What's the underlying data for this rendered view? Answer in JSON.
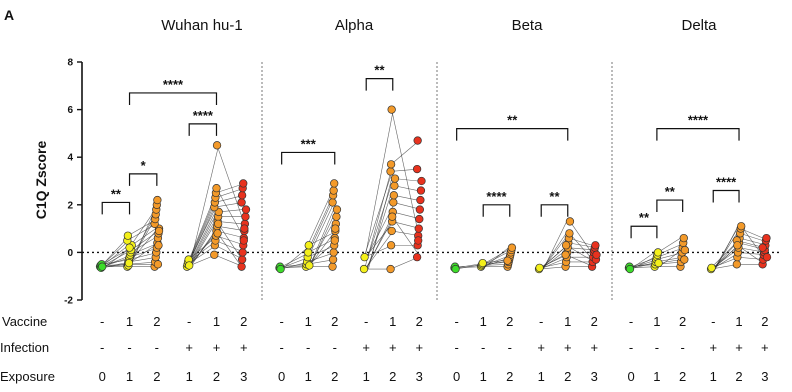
{
  "panel_letter": "A",
  "ylabel": "C1Q Zscore",
  "row_labels": [
    "Vaccine",
    "Infection",
    "Exposure"
  ],
  "rows": {
    "vaccine": [
      "-",
      "1",
      "2",
      "-",
      "1",
      "2"
    ],
    "infection": [
      "-",
      "-",
      "-",
      "+",
      "+",
      "+"
    ],
    "exposure": [
      "0",
      "1",
      "2",
      "1",
      "2",
      "3"
    ]
  },
  "chart_data": {
    "type": "scatter",
    "title": "",
    "ylabel": "C1Q Zscore",
    "ylim": [
      -2,
      8
    ],
    "yticks": [
      "-2",
      "0",
      "2",
      "4",
      "6",
      "8"
    ],
    "reference_line": 0,
    "group_colors": [
      "#3ddc2a",
      "#f4f01a",
      "#f39a2a",
      "#f4f01a",
      "#f39a2a",
      "#e8321e"
    ],
    "panels": [
      {
        "title": "Wuhan hu-1",
        "groups": [
          {
            "vaccine": "-",
            "infection": "-",
            "exposure": "0",
            "values": [
              -0.6,
              -0.55,
              -0.65,
              -0.5,
              -0.6
            ]
          },
          {
            "vaccine": "1",
            "infection": "-",
            "exposure": "1",
            "values": [
              -0.6,
              -0.5,
              -0.4,
              -0.3,
              -0.2,
              -0.1,
              0.0,
              0.1,
              0.3,
              0.5,
              0.7,
              -0.55,
              -0.45,
              0.2
            ]
          },
          {
            "vaccine": "2",
            "infection": "-",
            "exposure": "2",
            "values": [
              -0.6,
              -0.4,
              -0.2,
              0.0,
              0.2,
              0.4,
              0.6,
              0.8,
              1.0,
              1.2,
              1.4,
              1.6,
              1.8,
              2.0,
              2.2,
              -0.5,
              0.3,
              0.9
            ]
          },
          {
            "vaccine": "-",
            "infection": "+",
            "exposure": "1",
            "values": [
              -0.6,
              -0.5,
              -0.4,
              -0.3,
              -0.55
            ]
          },
          {
            "vaccine": "1",
            "infection": "+",
            "exposure": "2",
            "values": [
              -0.1,
              0.3,
              0.5,
              0.7,
              0.9,
              1.1,
              1.3,
              1.5,
              1.7,
              1.9,
              2.1,
              2.3,
              2.5,
              2.7,
              4.5,
              0.8,
              1.2
            ]
          },
          {
            "vaccine": "2",
            "infection": "+",
            "exposure": "3",
            "values": [
              -0.6,
              -0.3,
              0.0,
              0.3,
              0.6,
              0.9,
              1.2,
              1.5,
              1.8,
              2.1,
              2.4,
              2.7,
              2.9,
              0.5,
              1.0
            ]
          }
        ],
        "significance": [
          {
            "from": 0,
            "to": 1,
            "label": "**",
            "y": 2.1
          },
          {
            "from": 1,
            "to": 2,
            "label": "*",
            "y": 3.3
          },
          {
            "from": 1,
            "to": 4,
            "label": "****",
            "y": 6.7
          },
          {
            "from": 3,
            "to": 4,
            "label": "****",
            "y": 5.4
          }
        ]
      },
      {
        "title": "Alpha",
        "groups": [
          {
            "vaccine": "-",
            "infection": "-",
            "exposure": "0",
            "values": [
              -0.65,
              -0.6,
              -0.7
            ]
          },
          {
            "vaccine": "1",
            "infection": "-",
            "exposure": "1",
            "values": [
              -0.6,
              -0.5,
              -0.4,
              -0.2,
              0.0,
              0.3,
              -0.55
            ]
          },
          {
            "vaccine": "2",
            "infection": "-",
            "exposure": "2",
            "values": [
              -0.6,
              -0.3,
              0.0,
              0.3,
              0.6,
              0.9,
              1.2,
              1.5,
              1.8,
              2.1,
              2.4,
              2.6,
              2.9,
              0.5,
              1.0
            ]
          },
          {
            "vaccine": "-",
            "infection": "+",
            "exposure": "1",
            "values": [
              -0.7,
              -0.2
            ]
          },
          {
            "vaccine": "1",
            "infection": "+",
            "exposure": "2",
            "values": [
              -0.7,
              0.3,
              0.9,
              1.3,
              1.7,
              2.1,
              2.4,
              2.8,
              3.1,
              3.4,
              3.7,
              6.0,
              1.5
            ]
          },
          {
            "vaccine": "2",
            "infection": "+",
            "exposure": "3",
            "values": [
              -0.2,
              0.3,
              0.7,
              1.0,
              1.4,
              1.8,
              2.2,
              2.6,
              3.0,
              3.5,
              4.7,
              0.5
            ]
          }
        ],
        "significance": [
          {
            "from": 0,
            "to": 2,
            "label": "***",
            "y": 4.2
          },
          {
            "from": 3,
            "to": 4,
            "label": "**",
            "y": 7.3
          }
        ]
      },
      {
        "title": "Beta",
        "groups": [
          {
            "vaccine": "-",
            "infection": "-",
            "exposure": "0",
            "values": [
              -0.65,
              -0.6,
              -0.7
            ]
          },
          {
            "vaccine": "1",
            "infection": "-",
            "exposure": "1",
            "values": [
              -0.6,
              -0.55,
              -0.5,
              -0.45
            ]
          },
          {
            "vaccine": "2",
            "infection": "-",
            "exposure": "2",
            "values": [
              -0.6,
              -0.5,
              -0.4,
              -0.3,
              -0.2,
              -0.1,
              0.0,
              0.1,
              0.2,
              -0.35
            ]
          },
          {
            "vaccine": "-",
            "infection": "+",
            "exposure": "1",
            "values": [
              -0.7,
              -0.65
            ]
          },
          {
            "vaccine": "1",
            "infection": "+",
            "exposure": "2",
            "values": [
              -0.6,
              -0.4,
              -0.2,
              0.0,
              0.2,
              0.4,
              0.6,
              0.8,
              1.3,
              -0.1,
              0.3
            ]
          },
          {
            "vaccine": "2",
            "infection": "+",
            "exposure": "3",
            "values": [
              -0.6,
              -0.4,
              -0.2,
              0.0,
              0.1,
              0.2,
              0.3,
              -0.3,
              -0.1
            ]
          }
        ],
        "significance": [
          {
            "from": 1,
            "to": 2,
            "label": "****",
            "y": 2.0
          },
          {
            "from": 3,
            "to": 4,
            "label": "**",
            "y": 2.0
          },
          {
            "from": 0,
            "to": 4,
            "label": "**",
            "y": 5.2
          }
        ]
      },
      {
        "title": "Delta",
        "groups": [
          {
            "vaccine": "-",
            "infection": "-",
            "exposure": "0",
            "values": [
              -0.65,
              -0.6,
              -0.7
            ]
          },
          {
            "vaccine": "1",
            "infection": "-",
            "exposure": "1",
            "values": [
              -0.6,
              -0.5,
              -0.4,
              -0.3,
              -0.2,
              -0.1,
              0.0,
              -0.45
            ]
          },
          {
            "vaccine": "2",
            "infection": "-",
            "exposure": "2",
            "values": [
              -0.6,
              -0.4,
              -0.2,
              0.0,
              0.2,
              0.4,
              0.6,
              -0.3,
              0.1
            ]
          },
          {
            "vaccine": "-",
            "infection": "+",
            "exposure": "1",
            "values": [
              -0.7,
              -0.65
            ]
          },
          {
            "vaccine": "1",
            "infection": "+",
            "exposure": "2",
            "values": [
              -0.5,
              -0.2,
              0.0,
              0.2,
              0.4,
              0.6,
              0.8,
              1.0,
              1.1,
              0.5,
              0.3
            ]
          },
          {
            "vaccine": "2",
            "infection": "+",
            "exposure": "3",
            "values": [
              -0.5,
              -0.3,
              -0.1,
              0.0,
              0.1,
              0.3,
              0.5,
              0.6,
              -0.2,
              0.2
            ]
          }
        ],
        "significance": [
          {
            "from": 0,
            "to": 1,
            "label": "**",
            "y": 1.1
          },
          {
            "from": 1,
            "to": 2,
            "label": "**",
            "y": 2.2
          },
          {
            "from": 3,
            "to": 4,
            "label": "****",
            "y": 2.6
          },
          {
            "from": 1,
            "to": 4,
            "label": "****",
            "y": 5.2
          }
        ]
      }
    ]
  }
}
